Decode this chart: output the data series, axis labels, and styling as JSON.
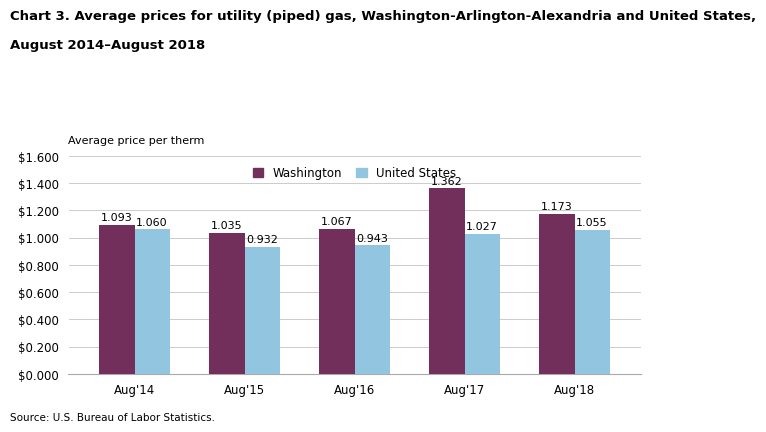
{
  "title_line1": "Chart 3. Average prices for utility (piped) gas, Washington-Arlington-Alexandria and United States,",
  "title_line2": "August 2014–August 2018",
  "ylabel": "Average price per therm",
  "categories": [
    "Aug'14",
    "Aug'15",
    "Aug'16",
    "Aug'17",
    "Aug'18"
  ],
  "washington": [
    1.093,
    1.035,
    1.067,
    1.362,
    1.173
  ],
  "us": [
    1.06,
    0.932,
    0.943,
    1.027,
    1.055
  ],
  "washington_color": "#722F5B",
  "us_color": "#92C5E0",
  "ylim": [
    0.0,
    1.6
  ],
  "yticks": [
    0.0,
    0.2,
    0.4,
    0.6,
    0.8,
    1.0,
    1.2,
    1.4,
    1.6
  ],
  "ytick_labels": [
    "$0.000",
    "$0.200",
    "$0.400",
    "$0.600",
    "$0.800",
    "$1.000",
    "$1.200",
    "$1.400",
    "$1.600"
  ],
  "source": "Source: U.S. Bureau of Labor Statistics.",
  "legend_washington": "Washington",
  "legend_us": "United States",
  "background_color": "#ffffff",
  "grid_color": "#cccccc",
  "title_fontsize": 9.5,
  "ylabel_fontsize": 8,
  "tick_fontsize": 8.5,
  "annotation_fontsize": 8,
  "source_fontsize": 7.5,
  "legend_fontsize": 8.5,
  "bar_width": 0.32
}
